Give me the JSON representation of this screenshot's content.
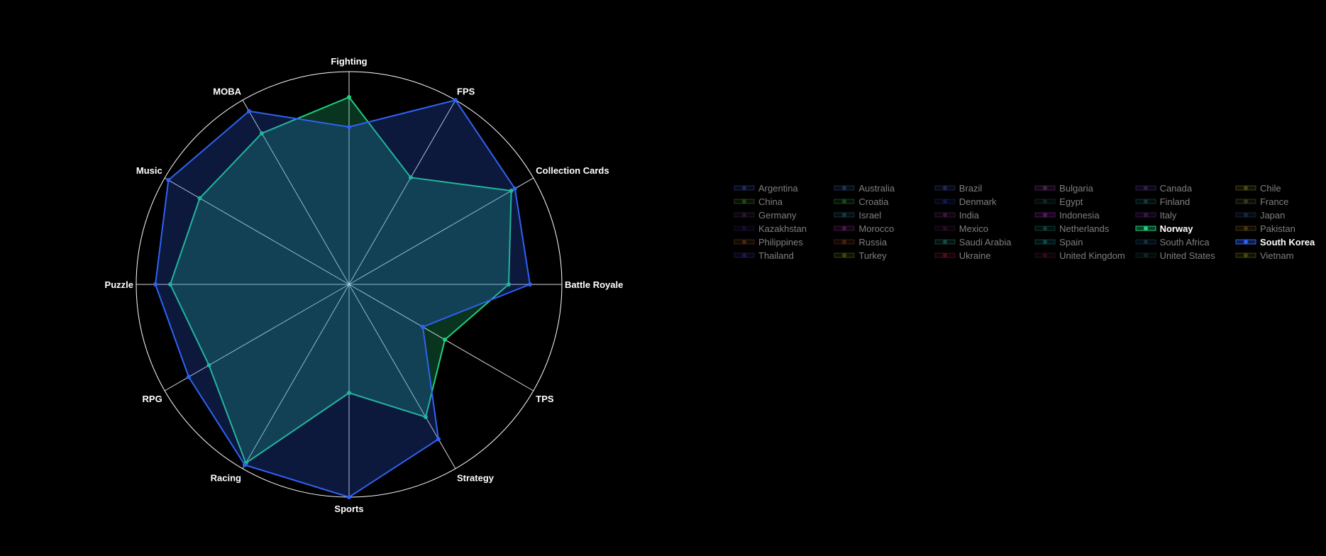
{
  "chart_data": {
    "type": "radar",
    "axes": [
      "Fighting",
      "FPS",
      "Collection Cards",
      "Battle Royale",
      "TPS",
      "Strategy",
      "Sports",
      "Racing",
      "RPG",
      "Puzzle",
      "Music",
      "MOBA"
    ],
    "rmax": 100,
    "grid": true,
    "legend_position": "right",
    "series": [
      {
        "name": "Norway",
        "color": "#1fd17f",
        "active": true,
        "values": [
          88,
          58,
          88,
          75,
          52,
          72,
          51,
          97,
          76,
          84,
          81,
          82
        ]
      },
      {
        "name": "South Korea",
        "color": "#2f62f4",
        "active": true,
        "values": [
          74,
          100,
          90,
          85,
          40,
          84,
          100,
          98,
          87,
          91,
          98,
          94
        ]
      }
    ]
  },
  "legend": [
    {
      "name": "Argentina",
      "color": "#3b4fa8"
    },
    {
      "name": "Australia",
      "color": "#3e5b9e"
    },
    {
      "name": "Brazil",
      "color": "#3d4aa0"
    },
    {
      "name": "Bulgaria",
      "color": "#8e3a8e"
    },
    {
      "name": "Canada",
      "color": "#5a3a9a"
    },
    {
      "name": "Chile",
      "color": "#8a8a2a"
    },
    {
      "name": "China",
      "color": "#3f8a2a"
    },
    {
      "name": "Croatia",
      "color": "#2e8a3a"
    },
    {
      "name": "Denmark",
      "color": "#1c2f8e"
    },
    {
      "name": "Egypt",
      "color": "#1a4a4a"
    },
    {
      "name": "Finland",
      "color": "#1f6a6a"
    },
    {
      "name": "France",
      "color": "#6a6a3a"
    },
    {
      "name": "Germany",
      "color": "#4a2a5a"
    },
    {
      "name": "Israel",
      "color": "#2a6a7a"
    },
    {
      "name": "India",
      "color": "#6a2a6a"
    },
    {
      "name": "Indonesia",
      "color": "#9a2ab0"
    },
    {
      "name": "Italy",
      "color": "#6a2a8a"
    },
    {
      "name": "Japan",
      "color": "#2a4a7a"
    },
    {
      "name": "Kazakhstan",
      "color": "#2a1a5a"
    },
    {
      "name": "Morocco",
      "color": "#8a2a8a"
    },
    {
      "name": "Mexico",
      "color": "#4a1a4a"
    },
    {
      "name": "Netherlands",
      "color": "#1a7a6a"
    },
    {
      "name": "Norway",
      "color": "#1fd17f",
      "active": true
    },
    {
      "name": "Pakistan",
      "color": "#8a6a1a"
    },
    {
      "name": "Philippines",
      "color": "#8a4a1a"
    },
    {
      "name": "Russia",
      "color": "#8a3a1a"
    },
    {
      "name": "Saudi Arabia",
      "color": "#2a8a7a"
    },
    {
      "name": "Spain",
      "color": "#1a8a8a"
    },
    {
      "name": "South Africa",
      "color": "#1a5a7a"
    },
    {
      "name": "South Korea",
      "color": "#2f62f4",
      "active": true
    },
    {
      "name": "Thailand",
      "color": "#3a2a9a"
    },
    {
      "name": "Turkey",
      "color": "#6a8a1a"
    },
    {
      "name": "Ukraine",
      "color": "#9a1a3a"
    },
    {
      "name": "United Kingdom",
      "color": "#5a1a3a"
    },
    {
      "name": "United States",
      "color": "#1a4a4a"
    },
    {
      "name": "Vietnam",
      "color": "#8a8a1a"
    }
  ]
}
